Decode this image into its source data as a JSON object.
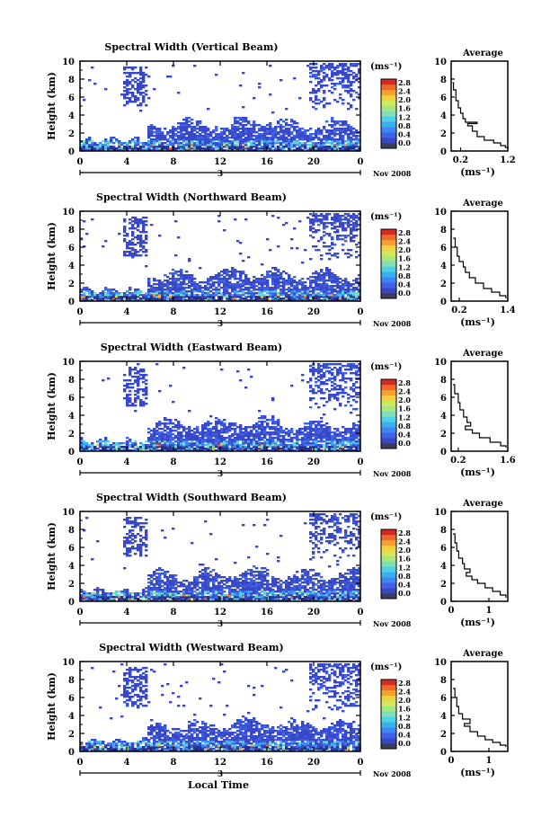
{
  "chart_data": [
    {
      "type": "heatmap",
      "title": "Spectral Width (Vertical Beam)",
      "ylabel": "Height (km)",
      "xlim": [
        0,
        24
      ],
      "ylim": [
        0,
        10
      ],
      "x_ticks": [
        "0",
        "4",
        "8",
        "12",
        "16",
        "20",
        "0"
      ],
      "y_ticks": [
        "0",
        "2",
        "4",
        "6",
        "8",
        "10"
      ],
      "date_marker": "3",
      "date_label": "Nov 2008",
      "colorbar": {
        "unit": "(ms⁻¹)",
        "ticks": [
          "0.0",
          "0.4",
          "0.8",
          "1.2",
          "1.6",
          "2.0",
          "2.4",
          "2.8"
        ]
      },
      "average": {
        "title": "Average",
        "xlabel": "(ms⁻¹)",
        "xlim": [
          0,
          1.2
        ],
        "x_ticks": [
          "0.2",
          "1.2"
        ],
        "x_tick_values": [
          0.2,
          1.2
        ],
        "ylim": [
          0,
          10
        ],
        "y_ticks": [
          "0",
          "2",
          "4",
          "6",
          "8",
          "10"
        ],
        "profile": [
          [
            0.03,
            7.6
          ],
          [
            0.05,
            6.8
          ],
          [
            0.1,
            5.6
          ],
          [
            0.15,
            4.8
          ],
          [
            0.2,
            4.2
          ],
          [
            0.25,
            3.6
          ],
          [
            0.3,
            3.2
          ],
          [
            0.55,
            3.05
          ],
          [
            0.35,
            2.8
          ],
          [
            0.45,
            2.2
          ],
          [
            0.55,
            1.6
          ],
          [
            0.7,
            1.2
          ],
          [
            0.9,
            0.9
          ],
          [
            1.05,
            0.6
          ],
          [
            1.15,
            0.4
          ],
          [
            1.2,
            0.3
          ]
        ]
      }
    },
    {
      "type": "heatmap",
      "title": "Spectral Width (Northward Beam)",
      "ylabel": "Height (km)",
      "xlim": [
        0,
        24
      ],
      "ylim": [
        0,
        10
      ],
      "x_ticks": [
        "0",
        "4",
        "8",
        "12",
        "16",
        "20",
        "0"
      ],
      "y_ticks": [
        "0",
        "2",
        "4",
        "6",
        "8",
        "10"
      ],
      "date_marker": "3",
      "date_label": "Nov 2008",
      "colorbar": {
        "unit": "(ms⁻¹)",
        "ticks": [
          "0.0",
          "0.4",
          "0.8",
          "1.2",
          "1.6",
          "2.0",
          "2.4",
          "2.8"
        ]
      },
      "average": {
        "title": "Average",
        "xlabel": "(ms⁻¹)",
        "xlim": [
          0,
          1.4
        ],
        "x_ticks": [
          "0.2",
          "1.4"
        ],
        "x_tick_values": [
          0.2,
          1.4
        ],
        "ylim": [
          0,
          10
        ],
        "y_ticks": [
          "0",
          "2",
          "4",
          "6",
          "8",
          "10"
        ],
        "profile": [
          [
            0.05,
            7.0
          ],
          [
            0.1,
            6.0
          ],
          [
            0.15,
            5.0
          ],
          [
            0.2,
            4.4
          ],
          [
            0.3,
            3.8
          ],
          [
            0.35,
            3.2
          ],
          [
            0.45,
            2.6
          ],
          [
            0.6,
            2.0
          ],
          [
            0.8,
            1.4
          ],
          [
            1.0,
            1.0
          ],
          [
            1.2,
            0.6
          ],
          [
            1.35,
            0.3
          ]
        ]
      }
    },
    {
      "type": "heatmap",
      "title": "Spectral Width (Eastward Beam)",
      "ylabel": "Height (km)",
      "xlim": [
        0,
        24
      ],
      "ylim": [
        0,
        10
      ],
      "x_ticks": [
        "0",
        "4",
        "8",
        "12",
        "16",
        "20",
        "0"
      ],
      "y_ticks": [
        "0",
        "2",
        "4",
        "6",
        "8",
        "10"
      ],
      "date_marker": "3",
      "date_label": "Nov 2008",
      "colorbar": {
        "unit": "(ms⁻¹)",
        "ticks": [
          "0.0",
          "0.4",
          "0.8",
          "1.2",
          "1.6",
          "2.0",
          "2.4",
          "2.8"
        ]
      },
      "average": {
        "title": "Average",
        "xlabel": "(ms⁻¹)",
        "xlim": [
          0,
          1.6
        ],
        "x_ticks": [
          "0.2",
          "1.6"
        ],
        "x_tick_values": [
          0.2,
          1.6
        ],
        "ylim": [
          0,
          10
        ],
        "y_ticks": [
          "0",
          "2",
          "4",
          "6",
          "8",
          "10"
        ],
        "profile": [
          [
            0.05,
            7.4
          ],
          [
            0.1,
            6.4
          ],
          [
            0.2,
            5.4
          ],
          [
            0.25,
            4.6
          ],
          [
            0.35,
            3.8
          ],
          [
            0.45,
            3.2
          ],
          [
            0.55,
            2.8
          ],
          [
            0.4,
            2.4
          ],
          [
            0.6,
            2.0
          ],
          [
            0.8,
            1.5
          ],
          [
            1.1,
            1.0
          ],
          [
            1.4,
            0.6
          ],
          [
            1.55,
            0.4
          ]
        ]
      }
    },
    {
      "type": "heatmap",
      "title": "Spectral Width (Southward Beam)",
      "ylabel": "Height (km)",
      "xlim": [
        0,
        24
      ],
      "ylim": [
        0,
        10
      ],
      "x_ticks": [
        "0",
        "4",
        "8",
        "12",
        "16",
        "20",
        "0"
      ],
      "y_ticks": [
        "0",
        "2",
        "4",
        "6",
        "8",
        "10"
      ],
      "date_marker": "3",
      "date_label": "Nov 2008",
      "colorbar": {
        "unit": "(ms⁻¹)",
        "ticks": [
          "0.0",
          "0.4",
          "0.8",
          "1.2",
          "1.6",
          "2.0",
          "2.4",
          "2.8"
        ]
      },
      "average": {
        "title": "Average",
        "xlabel": "(ms⁻¹)",
        "xlim": [
          0,
          1.5
        ],
        "x_ticks": [
          "0",
          "1"
        ],
        "x_tick_values": [
          0,
          1
        ],
        "ylim": [
          0,
          10
        ],
        "y_ticks": [
          "0",
          "2",
          "4",
          "6",
          "8",
          "10"
        ],
        "profile": [
          [
            0.05,
            7.5
          ],
          [
            0.1,
            6.5
          ],
          [
            0.15,
            5.6
          ],
          [
            0.2,
            4.8
          ],
          [
            0.3,
            4.2
          ],
          [
            0.35,
            3.6
          ],
          [
            0.5,
            3.2
          ],
          [
            0.4,
            2.8
          ],
          [
            0.55,
            2.4
          ],
          [
            0.7,
            2.0
          ],
          [
            0.9,
            1.5
          ],
          [
            1.1,
            1.1
          ],
          [
            1.3,
            0.7
          ],
          [
            1.45,
            0.4
          ]
        ]
      }
    },
    {
      "type": "heatmap",
      "title": "Spectral Width (Westward Beam)",
      "ylabel": "Height (km)",
      "xlabel": "Local Time",
      "xlim": [
        0,
        24
      ],
      "ylim": [
        0,
        10
      ],
      "x_ticks": [
        "0",
        "4",
        "8",
        "12",
        "16",
        "20",
        "0"
      ],
      "y_ticks": [
        "0",
        "2",
        "4",
        "6",
        "8",
        "10"
      ],
      "date_marker": "3",
      "date_label": "Nov 2008",
      "colorbar": {
        "unit": "(ms⁻¹)",
        "ticks": [
          "0.0",
          "0.4",
          "0.8",
          "1.2",
          "1.6",
          "2.0",
          "2.4",
          "2.8"
        ]
      },
      "average": {
        "title": "Average",
        "xlabel": "(ms⁻¹)",
        "xlim": [
          0,
          1.5
        ],
        "x_ticks": [
          "0",
          "1"
        ],
        "x_tick_values": [
          0,
          1
        ],
        "ylim": [
          0,
          10
        ],
        "y_ticks": [
          "0",
          "2",
          "4",
          "6",
          "8",
          "10"
        ],
        "profile": [
          [
            0.05,
            7.0
          ],
          [
            0.1,
            6.0
          ],
          [
            0.15,
            5.0
          ],
          [
            0.2,
            4.2
          ],
          [
            0.3,
            3.6
          ],
          [
            0.5,
            3.1
          ],
          [
            0.35,
            2.8
          ],
          [
            0.5,
            2.2
          ],
          [
            0.7,
            1.7
          ],
          [
            0.9,
            1.3
          ],
          [
            1.1,
            1.0
          ],
          [
            1.3,
            0.7
          ],
          [
            1.45,
            0.5
          ]
        ]
      }
    }
  ]
}
